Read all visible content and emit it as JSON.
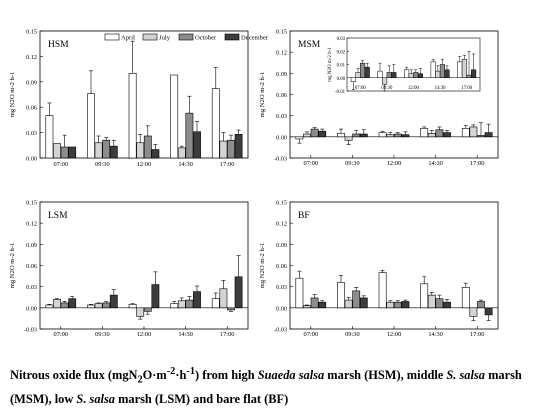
{
  "legend": [
    {
      "label": "April",
      "color": "#ffffff"
    },
    {
      "label": "July",
      "color": "#d4d4d4"
    },
    {
      "label": "October",
      "color": "#8c8c8c"
    },
    {
      "label": "December",
      "color": "#3c3c3c"
    }
  ],
  "caption": {
    "lead": "Nitrous oxide flux (mgN",
    "sub1": "2",
    "unit_mid": "O·m",
    "sup1": "-2",
    "dot": "·h",
    "sup2": "-1",
    "after_unit": ") from high ",
    "species1": "Suaeda salsa",
    "part2": " marsh (HSM), middle ",
    "species2": "S. salsa",
    "part3": " marsh (MSM), low ",
    "species3": "S. salsa",
    "part4": " marsh (LSM) and bare flat (BF)"
  },
  "chart_data": [
    {
      "type": "bar",
      "title": "HSM",
      "ylabel": "mg N2O m-2 h-1",
      "categories": [
        "07:00",
        "09:30",
        "12:00",
        "14:30",
        "17:00"
      ],
      "ylim": [
        0,
        0.15
      ],
      "yticks": [
        "0.00",
        "0.03",
        "0.06",
        "0.09",
        "0.12",
        "0.15"
      ],
      "series": [
        {
          "name": "April",
          "values": [
            0.05,
            0.076,
            0.1,
            0.098,
            0.082
          ],
          "errors": [
            0.015,
            0.027,
            0.038,
            0.0,
            0.025
          ]
        },
        {
          "name": "July",
          "values": [
            0.017,
            0.018,
            0.018,
            0.012,
            0.02
          ],
          "errors": [
            0.0,
            0.008,
            0.01,
            0.002,
            0.01
          ]
        },
        {
          "name": "October",
          "values": [
            0.013,
            0.021,
            0.026,
            0.053,
            0.021
          ],
          "errors": [
            0.014,
            0.003,
            0.012,
            0.02,
            0.006
          ]
        },
        {
          "name": "December",
          "values": [
            0.013,
            0.014,
            0.01,
            0.031,
            0.028
          ],
          "errors": [
            0.0,
            0.007,
            0.006,
            0.012,
            0.005
          ]
        }
      ]
    },
    {
      "type": "bar",
      "title": "MSM",
      "ylabel": "mg N2O m-2 h-1",
      "categories": [
        "07:00",
        "09:30",
        "12:00",
        "14:30",
        "17:00"
      ],
      "ylim": [
        -0.03,
        0.15
      ],
      "yticks": [
        "-0.03",
        "0.00",
        "0.03",
        "0.06",
        "0.09",
        "0.12",
        "0.15"
      ],
      "series": [
        {
          "name": "April",
          "values": [
            -0.003,
            0.005,
            0.006,
            0.012,
            0.012
          ],
          "errors": [
            0.006,
            0.006,
            0.002,
            0.002,
            0.004
          ]
        },
        {
          "name": "July",
          "values": [
            0.004,
            -0.005,
            0.003,
            0.005,
            0.014
          ],
          "errors": [
            0.003,
            0.006,
            0.003,
            0.004,
            0.003
          ]
        },
        {
          "name": "October",
          "values": [
            0.011,
            0.004,
            0.004,
            0.01,
            0.002
          ],
          "errors": [
            0.002,
            0.005,
            0.002,
            0.004,
            0.018
          ]
        },
        {
          "name": "December",
          "values": [
            0.008,
            0.004,
            0.003,
            0.006,
            0.006
          ],
          "errors": [
            0.003,
            0.006,
            0.004,
            0.003,
            0.012
          ]
        }
      ],
      "inset": {
        "ylim": [
          -0.01,
          0.03
        ],
        "yticks": [
          "-0.01",
          "0.00",
          "0.01",
          "0.02",
          "0.03"
        ],
        "tick_labels": [
          "07:00",
          "09:30",
          "12:00",
          "14:30",
          "17:00"
        ]
      }
    },
    {
      "type": "bar",
      "title": "LSM",
      "ylabel": "mg N2O m-2 h-1",
      "categories": [
        "07:00",
        "09:30",
        "12:00",
        "14:30",
        "17:00"
      ],
      "ylim": [
        -0.03,
        0.15
      ],
      "yticks": [
        "-0.03",
        "0.00",
        "0.03",
        "0.06",
        "0.09",
        "0.12",
        "0.15"
      ],
      "series": [
        {
          "name": "April",
          "values": [
            0.004,
            0.004,
            0.005,
            0.006,
            0.013
          ],
          "errors": [
            0.001,
            0.001,
            0.001,
            0.003,
            0.008
          ]
        },
        {
          "name": "July",
          "values": [
            0.012,
            0.006,
            -0.012,
            0.01,
            0.027
          ],
          "errors": [
            0.001,
            0.001,
            0.004,
            0.004,
            0.012
          ]
        },
        {
          "name": "October",
          "values": [
            0.007,
            0.007,
            -0.005,
            0.011,
            -0.003
          ],
          "errors": [
            0.002,
            0.002,
            0.004,
            0.005,
            0.002
          ]
        },
        {
          "name": "December",
          "values": [
            0.013,
            0.018,
            0.033,
            0.023,
            0.044
          ],
          "errors": [
            0.003,
            0.008,
            0.018,
            0.008,
            0.03
          ]
        }
      ]
    },
    {
      "type": "bar",
      "title": "BF",
      "ylabel": "mg N2O m-2 h-1",
      "categories": [
        "07:00",
        "09:30",
        "12:00",
        "14:30",
        "17:00"
      ],
      "ylim": [
        -0.03,
        0.15
      ],
      "yticks": [
        "-0.03",
        "0.00",
        "0.03",
        "0.06",
        "0.09",
        "0.12",
        "0.15"
      ],
      "series": [
        {
          "name": "April",
          "values": [
            0.042,
            0.036,
            0.05,
            0.034,
            0.029
          ],
          "errors": [
            0.01,
            0.01,
            0.003,
            0.01,
            0.006
          ]
        },
        {
          "name": "July",
          "values": [
            0.003,
            0.011,
            0.008,
            0.018,
            -0.012
          ],
          "errors": [
            0.001,
            0.004,
            0.002,
            0.004,
            0.006
          ]
        },
        {
          "name": "October",
          "values": [
            0.014,
            0.024,
            0.008,
            0.013,
            0.009
          ],
          "errors": [
            0.005,
            0.005,
            0.002,
            0.005,
            0.002
          ]
        },
        {
          "name": "December",
          "values": [
            0.008,
            0.014,
            0.009,
            0.008,
            -0.01
          ],
          "errors": [
            0.002,
            0.003,
            0.002,
            0.004,
            0.008
          ]
        }
      ]
    }
  ]
}
